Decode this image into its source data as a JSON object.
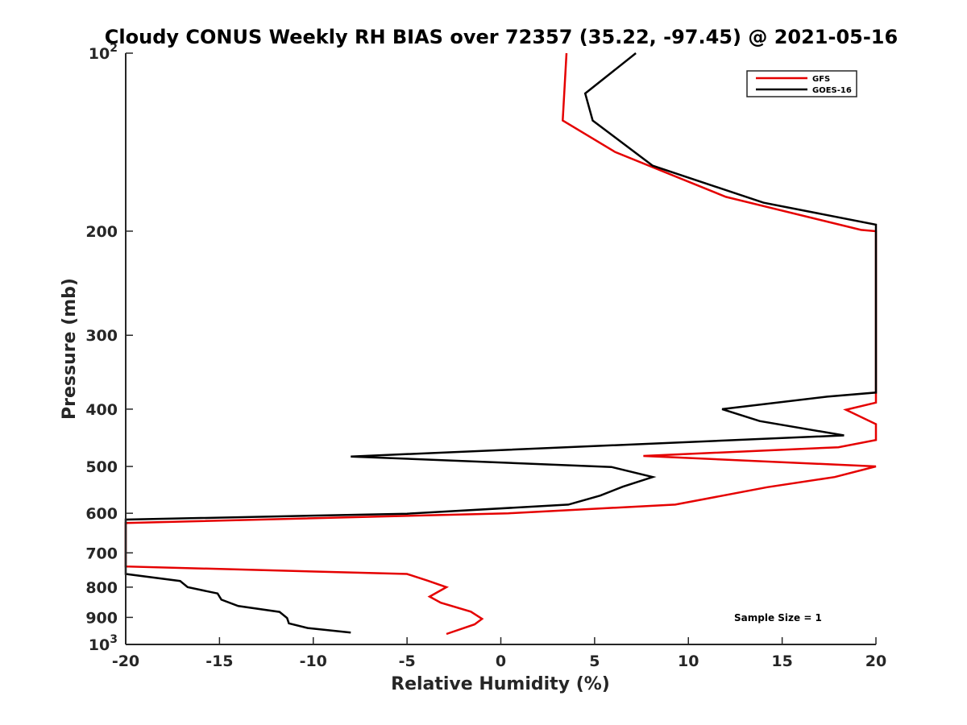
{
  "chart_data": {
    "type": "line",
    "title": "Cloudy CONUS Weekly RH BIAS over 72357 (35.22, -97.45) @ 2021-05-16",
    "xlabel": "Relative Humidity (%)",
    "ylabel": "Pressure (mb)",
    "xlim": [
      -20,
      20
    ],
    "ylim": [
      100,
      1000
    ],
    "yscale": "log",
    "y_reversed": true,
    "x_ticks": [
      "-20",
      "-15",
      "-10",
      "-5",
      "0",
      "5",
      "10",
      "15",
      "20"
    ],
    "y_ticks": [
      {
        "value": 100,
        "base": "10",
        "exp": "2"
      },
      {
        "value": 200,
        "label": "200"
      },
      {
        "value": 300,
        "label": "300"
      },
      {
        "value": 400,
        "label": "400"
      },
      {
        "value": 500,
        "label": "500"
      },
      {
        "value": 600,
        "label": "600"
      },
      {
        "value": 700,
        "label": "700"
      },
      {
        "value": 800,
        "label": "800"
      },
      {
        "value": 900,
        "label": "900"
      },
      {
        "value": 1000,
        "base": "10",
        "exp": "3"
      }
    ],
    "grid": false,
    "legend_position": "top-right",
    "annotation": "Sample Size = 1",
    "series": [
      {
        "name": "GFS",
        "color": "#e50000",
        "points": [
          [
            3.5,
            100
          ],
          [
            3.3,
            130
          ],
          [
            6.1,
            147
          ],
          [
            12,
            175
          ],
          [
            19.2,
            199
          ],
          [
            20,
            200
          ],
          [
            20,
            390
          ],
          [
            18.4,
            401
          ],
          [
            20,
            424
          ],
          [
            20,
            451
          ],
          [
            18.0,
            464
          ],
          [
            7.6,
            480
          ],
          [
            20,
            500
          ],
          [
            17.8,
            521
          ],
          [
            14.2,
            542
          ],
          [
            9.3,
            580
          ],
          [
            0.4,
            600
          ],
          [
            -20,
            623
          ],
          [
            -20,
            738
          ],
          [
            -5.0,
            760
          ],
          [
            -3.9,
            780
          ],
          [
            -2.9,
            800
          ],
          [
            -3.8,
            830
          ],
          [
            -3.2,
            850
          ],
          [
            -1.6,
            880
          ],
          [
            -1.0,
            905
          ],
          [
            -1.4,
            925
          ],
          [
            -2.9,
            960
          ]
        ]
      },
      {
        "name": "GOES-16",
        "color": "#000000",
        "points": [
          [
            7.2,
            100
          ],
          [
            4.5,
            117
          ],
          [
            4.9,
            130
          ],
          [
            8.1,
            155
          ],
          [
            14,
            179
          ],
          [
            20,
            195
          ],
          [
            20,
            375
          ],
          [
            17.4,
            381
          ],
          [
            11.8,
            400
          ],
          [
            13.8,
            419
          ],
          [
            18.3,
            443
          ],
          [
            -8.0,
            481
          ],
          [
            5.9,
            501
          ],
          [
            8.1,
            521
          ],
          [
            6.5,
            541
          ],
          [
            5.3,
            560
          ],
          [
            3.6,
            580
          ],
          [
            -5.0,
            601
          ],
          [
            -20,
            615
          ],
          [
            -20,
            760
          ],
          [
            -17.1,
            781
          ],
          [
            -16.7,
            800
          ],
          [
            -15.1,
            820
          ],
          [
            -14.9,
            840
          ],
          [
            -14.0,
            861
          ],
          [
            -11.8,
            881
          ],
          [
            -11.4,
            902
          ],
          [
            -11.3,
            921
          ],
          [
            -10.3,
            938
          ],
          [
            -8.0,
            955
          ]
        ]
      }
    ]
  }
}
